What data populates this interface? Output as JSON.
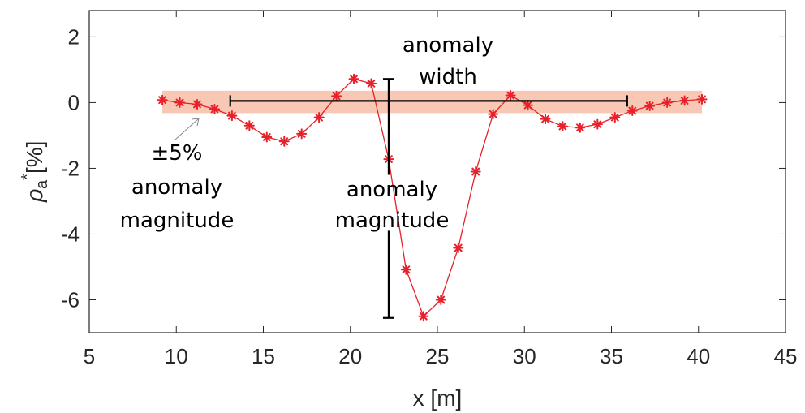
{
  "chart_data": {
    "type": "line",
    "xlabel": "x [m]",
    "ylabel_symbol": "ρ",
    "ylabel_subscript": "a",
    "ylabel_superscript": "*",
    "ylabel_unit": "[%]",
    "xlim": [
      5,
      45
    ],
    "ylim": [
      -7,
      2.8
    ],
    "x_ticks": [
      5,
      10,
      15,
      20,
      25,
      30,
      35,
      40,
      45
    ],
    "y_ticks": [
      -6,
      -4,
      -2,
      0,
      2
    ],
    "grid": false,
    "series": [
      {
        "color": "#e8202a",
        "marker": "asterisk",
        "x": [
          9.2,
          10.2,
          11.2,
          12.2,
          13.2,
          14.2,
          15.2,
          16.2,
          17.2,
          18.2,
          19.2,
          20.2,
          21.2,
          22.2,
          23.2,
          24.2,
          25.2,
          26.2,
          27.2,
          28.2,
          29.2,
          30.2,
          31.2,
          32.2,
          33.2,
          34.2,
          35.2,
          36.2,
          37.2,
          38.2,
          39.2,
          40.2
        ],
        "y": [
          0.08,
          0.0,
          -0.05,
          -0.2,
          -0.4,
          -0.7,
          -1.05,
          -1.18,
          -0.95,
          -0.45,
          0.2,
          0.72,
          0.58,
          -1.72,
          -5.08,
          -6.5,
          -6.0,
          -4.42,
          -2.1,
          -0.35,
          0.22,
          -0.08,
          -0.5,
          -0.72,
          -0.76,
          -0.66,
          -0.45,
          -0.25,
          -0.1,
          0.0,
          0.06,
          0.1
        ]
      }
    ],
    "band": {
      "y_min": -0.32,
      "y_max": 0.36,
      "x_min": 9.2,
      "x_max": 40.2,
      "color": "#f9c8b4"
    },
    "width_bar": {
      "x_start": 13.1,
      "x_end": 35.9,
      "y": 0.05
    },
    "magnitude_bar": {
      "x": 22.2,
      "y_top": 0.72,
      "y_bottom": -6.55,
      "gap_top": -2.2,
      "gap_bottom": -3.9
    },
    "annotations": {
      "width_line1": "anomaly",
      "width_line2": "width",
      "magnitude_line1": "anomaly",
      "magnitude_line2": "magnitude",
      "band_line1": "±5%",
      "band_line2": "anomaly",
      "band_line3": "magnitude"
    }
  }
}
